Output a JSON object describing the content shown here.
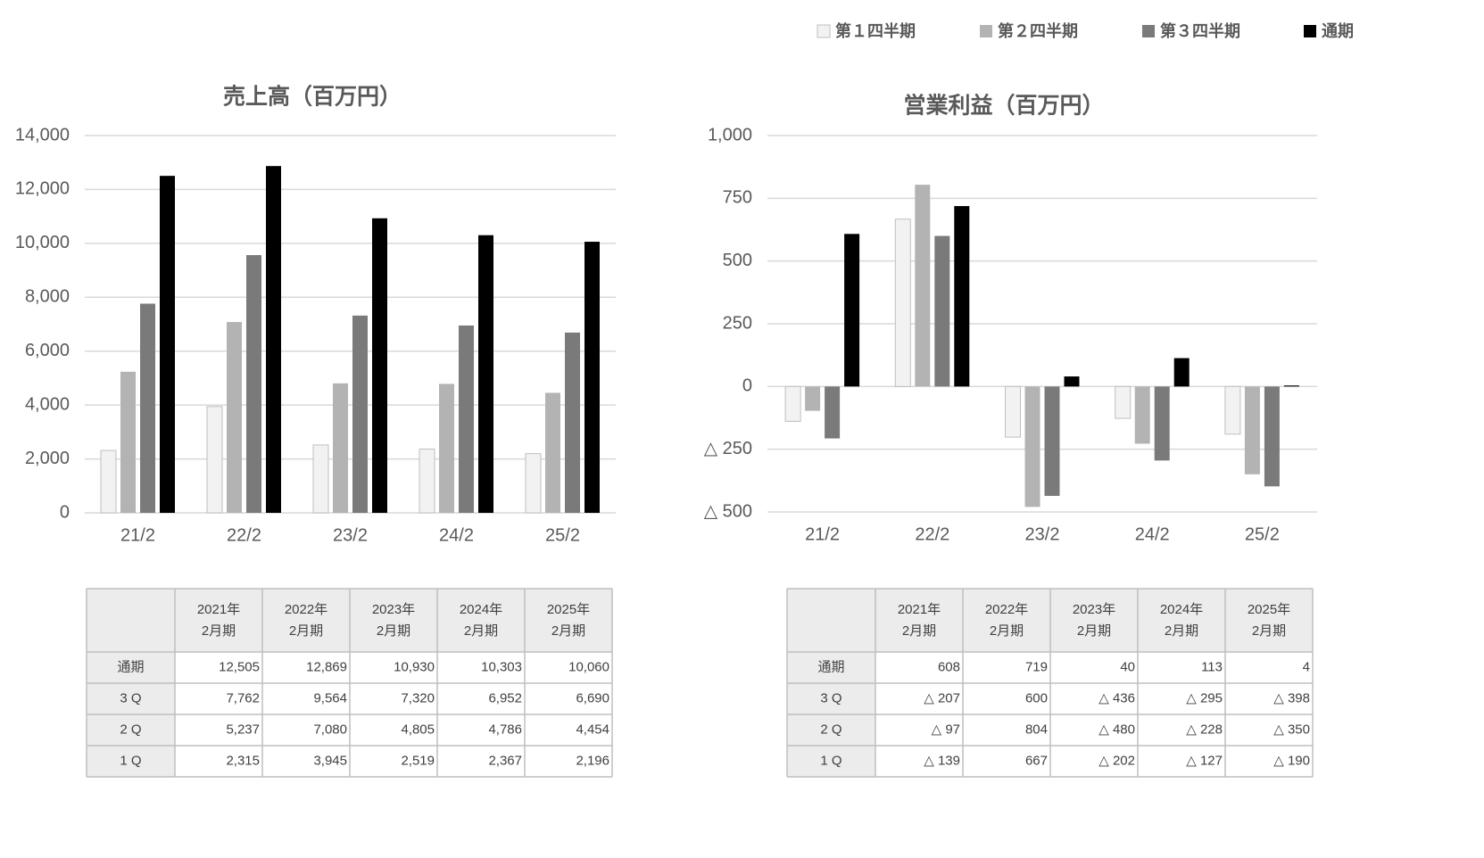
{
  "chart_data": [
    {
      "type": "bar",
      "title": "売上高（百万円）",
      "categories": [
        "21/2",
        "22/2",
        "23/2",
        "24/2",
        "25/2"
      ],
      "series": [
        {
          "name": "第１四半期",
          "color": "#f2f2f2",
          "values": [
            2315,
            3945,
            2519,
            2367,
            2196
          ],
          "value_labels": [
            "2,315",
            "3,945",
            "2,519",
            "2,367",
            "2,196"
          ]
        },
        {
          "name": "第２四半期",
          "color": "#b3b3b3",
          "values": [
            5237,
            7080,
            4805,
            4786,
            4454
          ],
          "value_labels": [
            "5,237",
            "7,080",
            "4,805",
            "4,786",
            "4,454"
          ]
        },
        {
          "name": "第３四半期",
          "color": "#7a7a7a",
          "values": [
            7762,
            9564,
            7320,
            6952,
            6690
          ],
          "value_labels": [
            "7,762",
            "9,564",
            "7,320",
            "6,952",
            "6,690"
          ]
        },
        {
          "name": "通期",
          "color": "#000000",
          "values": [
            12505,
            12869,
            10930,
            10303,
            10060
          ],
          "value_labels": [
            "12,505",
            "12,869",
            "10,930",
            "10,303",
            "10,060"
          ]
        }
      ],
      "ylim": [
        0,
        14000
      ],
      "yticks": [
        0,
        {
          "value": 2000,
          "label": "2,000"
        },
        {
          "value": 4000,
          "label": "4,000"
        },
        {
          "value": 6000,
          "label": "6,000"
        },
        {
          "value": 8000,
          "label": "8,000"
        },
        {
          "value": 10000,
          "label": "10,000"
        },
        {
          "value": 12000,
          "label": "12,000"
        },
        {
          "value": 14000,
          "label": "14,000"
        }
      ],
      "grid": true
    },
    {
      "type": "bar",
      "title": "営業利益（百万円）",
      "categories": [
        "21/2",
        "22/2",
        "23/2",
        "24/2",
        "25/2"
      ],
      "series": [
        {
          "color": "#f2f2f2",
          "values": [
            -139,
            667,
            -202,
            -127,
            -190
          ],
          "value_labels": [
            "△ 139",
            "667",
            "△ 202",
            "△ 127",
            "△ 190"
          ]
        },
        {
          "color": "#b3b3b3",
          "values": [
            -97,
            804,
            -480,
            -228,
            -350
          ],
          "value_labels": [
            "△ 97",
            "804",
            "△ 480",
            "△ 228",
            "△ 350"
          ]
        },
        {
          "color": "#7a7a7a",
          "values": [
            -207,
            600,
            -436,
            -295,
            -398
          ],
          "value_labels": [
            "△ 207",
            "600",
            "△ 436",
            "△ 295",
            "△ 398"
          ]
        },
        {
          "color": "#000000",
          "values": [
            608,
            719,
            40,
            113,
            4
          ],
          "value_labels": [
            "608",
            "719",
            "40",
            "113",
            "4"
          ]
        }
      ],
      "ylim": [
        -500,
        1000
      ],
      "yticks": [
        {
          "value": -500,
          "label": "△ 500"
        },
        {
          "value": -250,
          "label": "△ 250"
        },
        0,
        250,
        500,
        750,
        {
          "value": 1000,
          "label": "1,000"
        }
      ],
      "grid": true
    }
  ],
  "tables": [
    {
      "columns": [
        [
          "2021年",
          "2月期"
        ],
        [
          "2022年",
          "2月期"
        ],
        [
          "2023年",
          "2月期"
        ],
        [
          "2024年",
          "2月期"
        ],
        [
          "2025年",
          "2月期"
        ]
      ],
      "rows": [
        "通期",
        "3 Q",
        "2 Q",
        "1 Q"
      ]
    },
    {
      "columns": [
        [
          "2021年",
          "2月期"
        ],
        [
          "2022年",
          "2月期"
        ],
        [
          "2023年",
          "2月期"
        ],
        [
          "2024年",
          "2月期"
        ],
        [
          "2025年",
          "2月期"
        ]
      ],
      "rows": [
        "通期",
        "3 Q",
        "2 Q",
        "1 Q"
      ]
    }
  ]
}
